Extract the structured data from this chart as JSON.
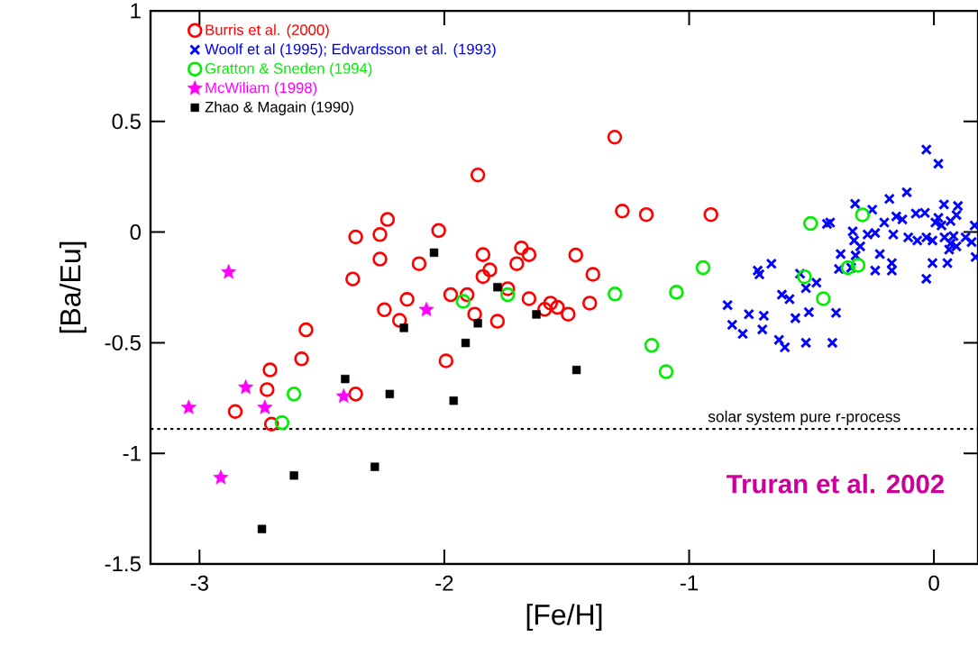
{
  "chart_data": {
    "type": "scatter",
    "xlabel": "[Fe/H]",
    "ylabel": "[Ba/Eu]",
    "xlim": [
      -3.2,
      0.18
    ],
    "ylim": [
      -1.5,
      1
    ],
    "xticks": [
      -3,
      -2,
      -1,
      0
    ],
    "yticks": [
      -1.5,
      -1,
      -0.5,
      0,
      0.5,
      1
    ],
    "legend": "top left",
    "grid": false,
    "ref_lines": [
      {
        "axis": "y",
        "value": -0.89,
        "label": "solar system pure r-process",
        "color": "#000000",
        "line_style": "dotted"
      }
    ],
    "annotations": [
      "Truran et al. 2002"
    ],
    "series": [
      {
        "name": "Burris et al. (2000)",
        "color": "#ff0000",
        "marker": "circle",
        "x": [
          -2.232,
          -2.362,
          -2.263,
          -2.023,
          -2.263,
          -2.103,
          -2.374,
          -1.842,
          -1.685,
          -1.654,
          -1.704,
          -1.814,
          -1.842,
          -2.152,
          -1.974,
          -1.907,
          -1.741,
          -1.654,
          -2.245,
          -2.183,
          -1.876,
          -1.783,
          -1.993,
          -2.565,
          -2.583,
          -2.712,
          -2.724,
          -2.854,
          -2.706,
          -2.362,
          -1.304,
          -1.863,
          -1.273,
          -1.175,
          -0.911,
          -1.463,
          -1.393,
          -1.566,
          -1.538,
          -1.59,
          -1.494,
          -1.406
        ],
        "values": [
          0.057,
          -0.022,
          -0.011,
          0.007,
          -0.122,
          -0.143,
          -0.212,
          -0.102,
          -0.072,
          -0.102,
          -0.143,
          -0.171,
          -0.201,
          -0.304,
          -0.283,
          -0.283,
          -0.256,
          -0.301,
          -0.351,
          -0.399,
          -0.371,
          -0.403,
          -0.582,
          -0.442,
          -0.573,
          -0.623,
          -0.712,
          -0.811,
          -0.868,
          -0.732,
          0.429,
          0.258,
          0.095,
          0.079,
          0.079,
          -0.104,
          -0.191,
          -0.321,
          -0.34,
          -0.349,
          -0.371,
          -0.321
        ]
      },
      {
        "name": "Woolf et al (1995); Edvardsson et al. (1993)",
        "color": "#0000ff",
        "marker": "cross",
        "x": [
          -0.031,
          0.018,
          -0.111,
          -0.182,
          -0.322,
          -0.252,
          -0.424,
          -0.437,
          -0.154,
          -0.129,
          -0.203,
          -0.074,
          -0.037,
          0.041,
          0.098,
          0.092,
          0.018,
          0.006,
          0.031,
          0.068,
          0.166,
          -0.332,
          -0.271,
          -0.24,
          -0.166,
          -0.105,
          -0.068,
          -0.031,
          -0.006,
          0.043,
          0.08,
          0.129,
          0.154,
          0.068,
          0.092,
          0.062,
          -0.326,
          -0.301,
          -0.381,
          -0.32,
          -0.221,
          -0.388,
          -0.338,
          -0.24,
          -0.172,
          -0.172,
          -0.006,
          0.055,
          -0.031,
          0.17,
          -0.72,
          -0.664,
          -0.713,
          -0.547,
          -0.48,
          -0.523,
          -0.621,
          -0.59,
          -0.843,
          -0.756,
          -0.695,
          -0.824,
          -0.781,
          -0.701,
          -0.566,
          -0.511,
          -0.4,
          -0.633,
          -0.609,
          -0.523,
          -0.415
        ],
        "values": [
          0.373,
          0.309,
          0.18,
          0.15,
          0.128,
          0.101,
          0.043,
          0.037,
          0.071,
          0.057,
          0.043,
          0.084,
          0.087,
          0.125,
          0.118,
          0.077,
          0.064,
          0.043,
          0.03,
          0.05,
          0.03,
          0.003,
          -0.011,
          -0.004,
          -0.011,
          -0.024,
          -0.038,
          -0.024,
          -0.038,
          -0.024,
          -0.018,
          -0.024,
          -0.045,
          -0.052,
          -0.065,
          -0.079,
          -0.038,
          -0.065,
          -0.099,
          -0.106,
          -0.099,
          -0.167,
          -0.161,
          -0.174,
          -0.14,
          -0.174,
          -0.14,
          -0.14,
          -0.211,
          -0.113,
          -0.174,
          -0.143,
          -0.191,
          -0.188,
          -0.229,
          -0.253,
          -0.283,
          -0.303,
          -0.33,
          -0.371,
          -0.378,
          -0.419,
          -0.46,
          -0.44,
          -0.389,
          -0.362,
          -0.365,
          -0.487,
          -0.521,
          -0.5,
          -0.5
        ]
      },
      {
        "name": "Gratton & Sneden (1994)",
        "color": "#00ee00",
        "marker": "circle",
        "x": [
          -2.614,
          -2.663,
          -1.923,
          -1.741,
          -1.303,
          -1.052,
          -0.943,
          -1.153,
          -1.094,
          -0.504,
          -0.292,
          -0.529,
          -0.452,
          -0.351,
          -0.31
        ],
        "values": [
          -0.732,
          -0.861,
          -0.313,
          -0.283,
          -0.28,
          -0.272,
          -0.161,
          -0.512,
          -0.631,
          0.039,
          0.078,
          -0.202,
          -0.301,
          -0.161,
          -0.15
        ]
      },
      {
        "name": "McWiliam  (1998)",
        "color": "#ff00ff",
        "marker": "star",
        "x": [
          -2.881,
          -2.073,
          -2.811,
          -3.044,
          -2.733,
          -2.411,
          -2.913
        ],
        "values": [
          -0.181,
          -0.351,
          -0.702,
          -0.793,
          -0.793,
          -0.742,
          -1.11
        ]
      },
      {
        "name": "Zhao & Magain (1990)",
        "color": "#000000",
        "marker": "square",
        "x": [
          -2.042,
          -1.783,
          -1.624,
          -2.165,
          -1.863,
          -1.913,
          -2.405,
          -2.223,
          -1.962,
          -2.614,
          -2.284,
          -2.745,
          -1.46
        ],
        "values": [
          -0.093,
          -0.249,
          -0.372,
          -0.433,
          -0.412,
          -0.501,
          -0.664,
          -0.732,
          -0.762,
          -1.1,
          -1.061,
          -1.342,
          -0.623
        ]
      }
    ]
  }
}
